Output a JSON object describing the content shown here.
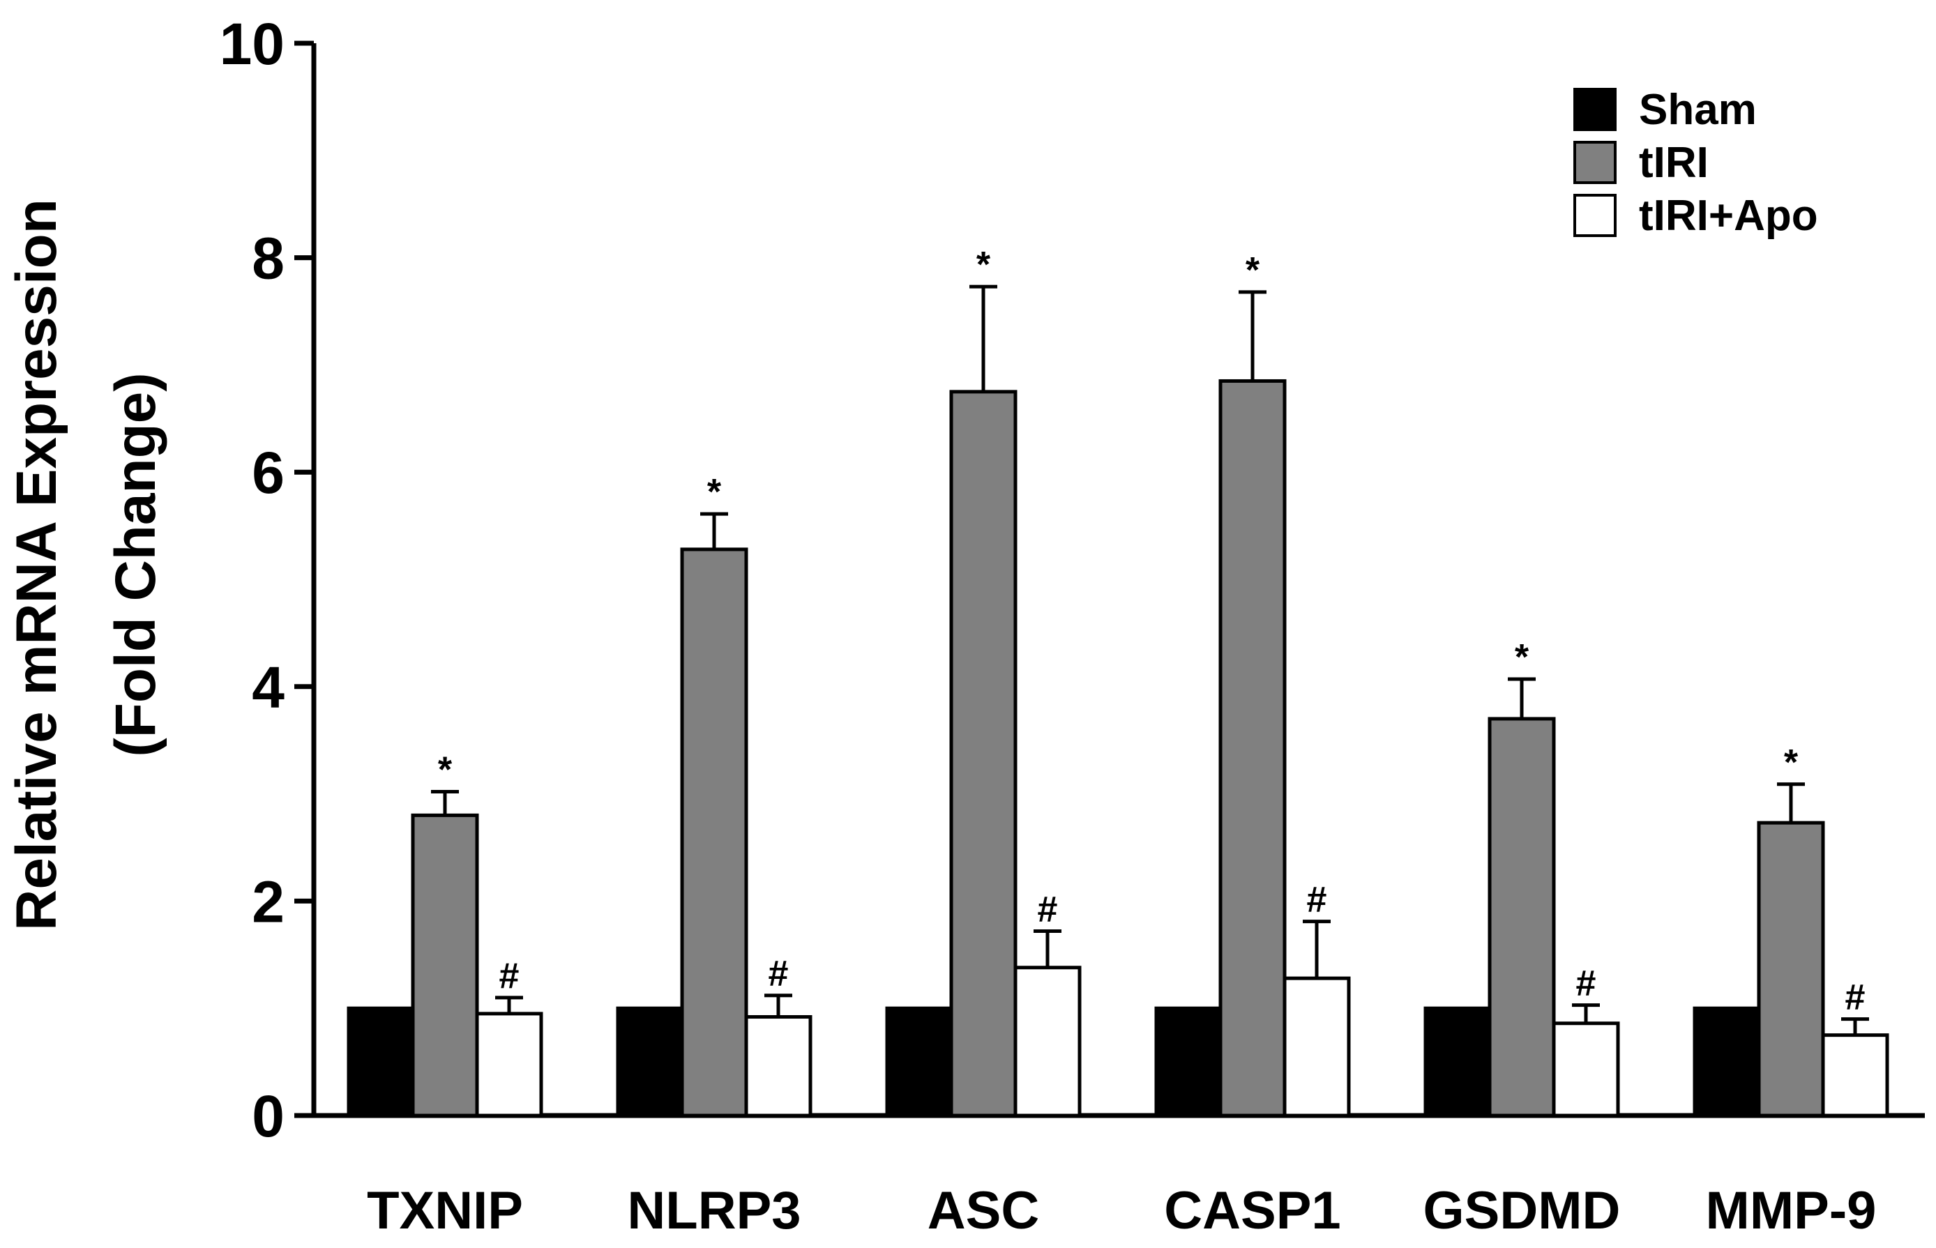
{
  "chart_data": {
    "type": "bar",
    "title": "",
    "xlabel": "",
    "ylabel": [
      "Relative mRNA Expression",
      "(Fold Change)"
    ],
    "ylim": [
      0,
      10
    ],
    "yticks": [
      0,
      2,
      4,
      6,
      8,
      10
    ],
    "grid": false,
    "legend_position": "top-right",
    "categories": [
      "TXNIP",
      "NLRP3",
      "ASC",
      "CASP1",
      "GSDMD",
      "MMP-9"
    ],
    "series": [
      {
        "name": "Sham",
        "color": "#000000",
        "values": [
          1.0,
          1.0,
          1.0,
          1.0,
          1.0,
          1.0
        ],
        "errors": [
          0,
          0,
          0,
          0,
          0,
          0
        ],
        "annotations": [
          "",
          "",
          "",
          "",
          "",
          ""
        ]
      },
      {
        "name": "tIRI",
        "color": "#808080",
        "values": [
          2.8,
          5.28,
          6.75,
          6.85,
          3.7,
          2.73
        ],
        "errors": [
          0.22,
          0.33,
          0.98,
          0.83,
          0.37,
          0.36
        ],
        "annotations": [
          "*",
          "*",
          "*",
          "*",
          "*",
          "*"
        ]
      },
      {
        "name": "tIRI+Apo",
        "color": "#ffffff",
        "values": [
          0.95,
          0.92,
          1.38,
          1.28,
          0.86,
          0.75
        ],
        "errors": [
          0.15,
          0.2,
          0.34,
          0.53,
          0.17,
          0.15
        ],
        "annotations": [
          "#",
          "#",
          "#",
          "#",
          "#",
          "#"
        ]
      }
    ]
  }
}
